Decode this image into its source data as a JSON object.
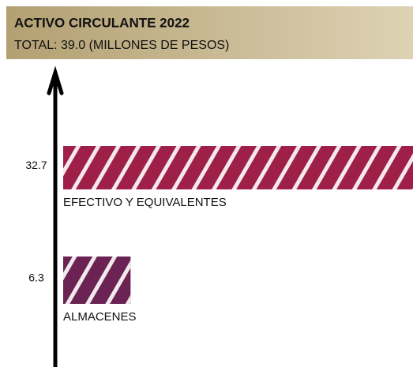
{
  "chart_data": {
    "type": "hbar",
    "title": "ACTIVO CIRCULANTE 2022",
    "subtitle": "TOTAL:  39.0 (MILLONES DE PESOS)",
    "categories": [
      "EFECTIVO Y EQUIVALENTES",
      "ALMACENES"
    ],
    "values": [
      32.7,
      6.3
    ],
    "colors": [
      "#9e1f48",
      "#6a2352"
    ]
  }
}
